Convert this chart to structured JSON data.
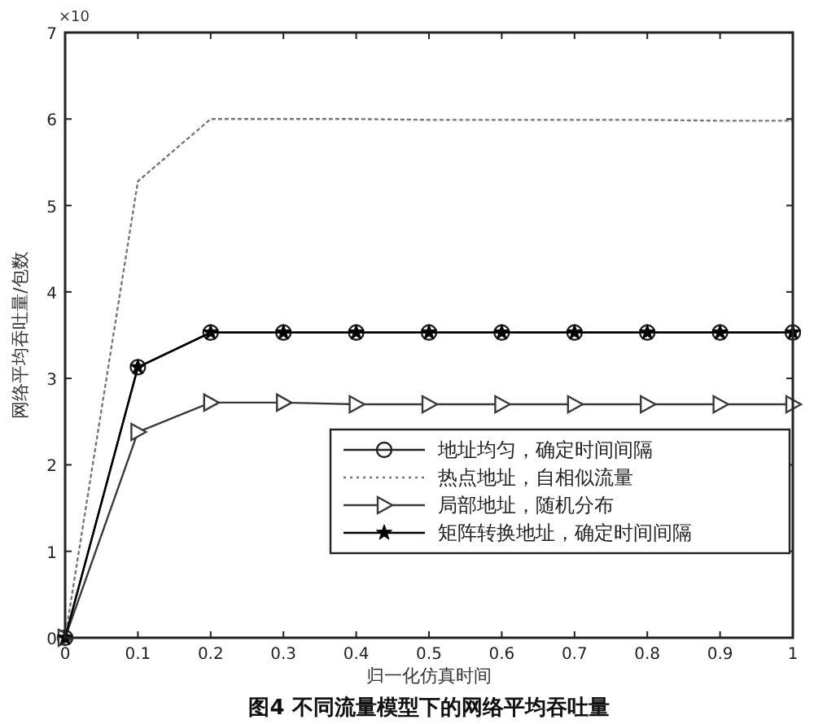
{
  "chart_data": {
    "type": "line",
    "title": "图4 不同流量模型下的网络平均吞吐量",
    "xlabel": "归一化仿真时间",
    "ylabel": "网络平均吞吐量/包数",
    "annotations": [
      "×10"
    ],
    "x": [
      0,
      0.1,
      0.2,
      0.3,
      0.4,
      0.5,
      0.6,
      0.7,
      0.8,
      0.9,
      1
    ],
    "xlim": [
      0,
      1
    ],
    "xticks": [
      0,
      0.1,
      0.2,
      0.3,
      0.4,
      0.5,
      0.6,
      0.7,
      0.8,
      0.9,
      1
    ],
    "ylim": [
      0,
      7
    ],
    "yticks": [
      0,
      1,
      2,
      3,
      4,
      5,
      6,
      7
    ],
    "grid": false,
    "legend": "bottom right",
    "series": [
      {
        "name": "地址均匀，确定时间间隔",
        "color": "#222222",
        "marker": "circle",
        "line_style": "solid",
        "values": [
          0,
          3.13,
          3.53,
          3.53,
          3.53,
          3.53,
          3.53,
          3.53,
          3.53,
          3.53,
          3.53
        ]
      },
      {
        "name": "热点地址，自相似流量",
        "color": "#777777",
        "marker": "none",
        "line_style": "dotted",
        "values": [
          0,
          5.28,
          6.0,
          6.0,
          6.0,
          5.99,
          5.99,
          5.99,
          5.99,
          5.98,
          5.98
        ]
      },
      {
        "name": "局部地址，随机分布",
        "color": "#3a3a3a",
        "marker": "triangle",
        "line_style": "solid",
        "values": [
          0,
          2.38,
          2.72,
          2.72,
          2.7,
          2.7,
          2.7,
          2.7,
          2.7,
          2.7,
          2.7
        ]
      },
      {
        "name": "矩阵转换地址，确定时间间隔",
        "color": "#000000",
        "marker": "star",
        "line_style": "solid",
        "values": [
          0,
          3.13,
          3.53,
          3.53,
          3.53,
          3.53,
          3.53,
          3.53,
          3.53,
          3.53,
          3.53
        ]
      }
    ]
  }
}
